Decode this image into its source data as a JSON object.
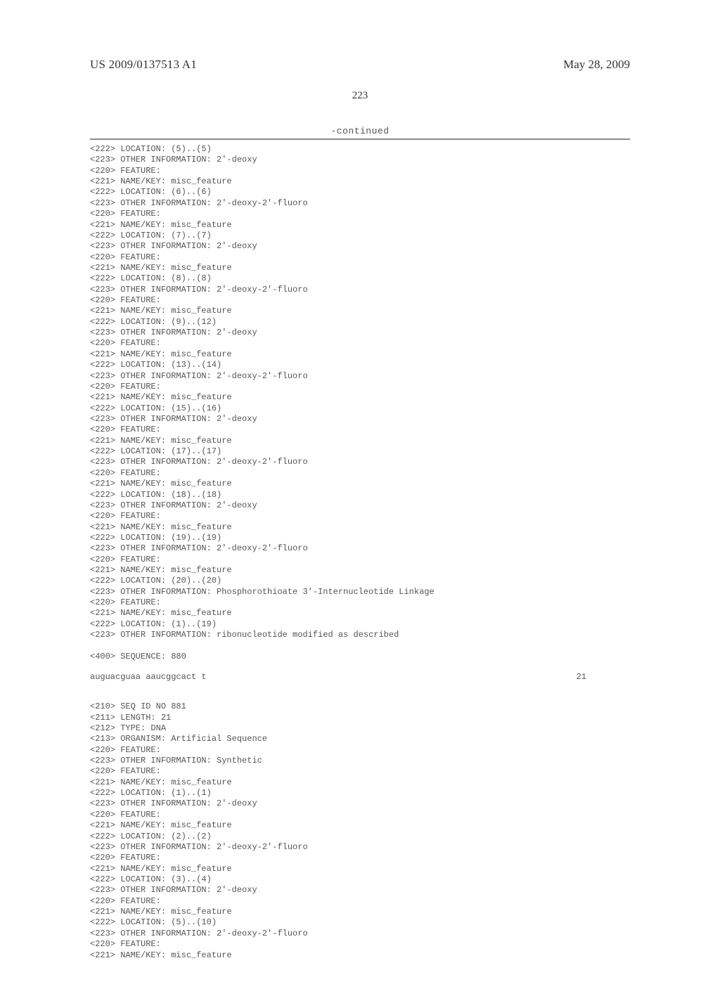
{
  "header": {
    "publication_number": "US 2009/0137513 A1",
    "publication_date": "May 28, 2009"
  },
  "page_number": "223",
  "continued_label": "-continued",
  "listing_block_1": "<222> LOCATION: (5)..(5)\n<223> OTHER INFORMATION: 2'-deoxy\n<220> FEATURE:\n<221> NAME/KEY: misc_feature\n<222> LOCATION: (6)..(6)\n<223> OTHER INFORMATION: 2'-deoxy-2'-fluoro\n<220> FEATURE:\n<221> NAME/KEY: misc_feature\n<222> LOCATION: (7)..(7)\n<223> OTHER INFORMATION: 2'-deoxy\n<220> FEATURE:\n<221> NAME/KEY: misc_feature\n<222> LOCATION: (8)..(8)\n<223> OTHER INFORMATION: 2'-deoxy-2'-fluoro\n<220> FEATURE:\n<221> NAME/KEY: misc_feature\n<222> LOCATION: (9)..(12)\n<223> OTHER INFORMATION: 2'-deoxy\n<220> FEATURE:\n<221> NAME/KEY: misc_feature\n<222> LOCATION: (13)..(14)\n<223> OTHER INFORMATION: 2'-deoxy-2'-fluoro\n<220> FEATURE:\n<221> NAME/KEY: misc_feature\n<222> LOCATION: (15)..(16)\n<223> OTHER INFORMATION: 2'-deoxy\n<220> FEATURE:\n<221> NAME/KEY: misc_feature\n<222> LOCATION: (17)..(17)\n<223> OTHER INFORMATION: 2'-deoxy-2'-fluoro\n<220> FEATURE:\n<221> NAME/KEY: misc_feature\n<222> LOCATION: (18)..(18)\n<223> OTHER INFORMATION: 2'-deoxy\n<220> FEATURE:\n<221> NAME/KEY: misc_feature\n<222> LOCATION: (19)..(19)\n<223> OTHER INFORMATION: 2'-deoxy-2'-fluoro\n<220> FEATURE:\n<221> NAME/KEY: misc_feature\n<222> LOCATION: (20)..(20)\n<223> OTHER INFORMATION: Phosphorothioate 3'-Internucleotide Linkage\n<220> FEATURE:\n<221> NAME/KEY: misc_feature\n<222> LOCATION: (1)..(19)\n<223> OTHER INFORMATION: ribonucleotide modified as described\n\n<400> SEQUENCE: 880",
  "sequence_row": {
    "sequence": "auguacguaa aaucggcact t",
    "length": "21"
  },
  "listing_block_2": "<210> SEQ ID NO 881\n<211> LENGTH: 21\n<212> TYPE: DNA\n<213> ORGANISM: Artificial Sequence\n<220> FEATURE:\n<223> OTHER INFORMATION: Synthetic\n<220> FEATURE:\n<221> NAME/KEY: misc_feature\n<222> LOCATION: (1)..(1)\n<223> OTHER INFORMATION: 2'-deoxy\n<220> FEATURE:\n<221> NAME/KEY: misc_feature\n<222> LOCATION: (2)..(2)\n<223> OTHER INFORMATION: 2'-deoxy-2'-fluoro\n<220> FEATURE:\n<221> NAME/KEY: misc_feature\n<222> LOCATION: (3)..(4)\n<223> OTHER INFORMATION: 2'-deoxy\n<220> FEATURE:\n<221> NAME/KEY: misc_feature\n<222> LOCATION: (5)..(10)\n<223> OTHER INFORMATION: 2'-deoxy-2'-fluoro\n<220> FEATURE:\n<221> NAME/KEY: misc_feature"
}
